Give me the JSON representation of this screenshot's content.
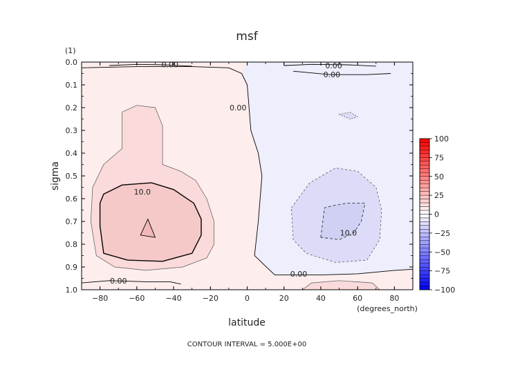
{
  "chart_data": {
    "type": "contour",
    "title": "msf",
    "xlabel": "latitude",
    "ylabel": "sigma",
    "y_unit_label": "(1)",
    "x_unit_label": "(degrees_north)",
    "footer": "CONTOUR INTERVAL = 5.000E+00",
    "xlim": [
      -90,
      90
    ],
    "ylim": [
      1.0,
      0.0
    ],
    "x_ticks": [
      -80,
      -60,
      -40,
      -20,
      0,
      20,
      40,
      60,
      80
    ],
    "x_tick_labels": [
      "−80",
      "−60",
      "−40",
      "−20",
      "0",
      "20",
      "40",
      "60",
      "80"
    ],
    "y_ticks": [
      0.0,
      0.1,
      0.2,
      0.3,
      0.4,
      0.5,
      0.6,
      0.7,
      0.8,
      0.9,
      1.0
    ],
    "y_tick_labels": [
      "0.0",
      "0.1",
      "0.2",
      "0.3",
      "0.4",
      "0.5",
      "0.6",
      "0.7",
      "0.8",
      "0.9",
      "1.0"
    ],
    "colorbar": {
      "min": -100,
      "max": 100,
      "labels": [
        "100",
        "75",
        "50",
        "25",
        "0",
        "−25",
        "−50",
        "−75",
        "−100"
      ],
      "label_values": [
        100,
        75,
        50,
        25,
        0,
        -25,
        -50,
        -75,
        -100
      ],
      "n_steps": 40,
      "colors": {
        "pos_max": "#ff0000",
        "neg_max": "#0000ff",
        "mid": "#ffffff"
      }
    },
    "fill_colors": {
      "bg_pos": "#fdeded",
      "bg_neg": "#eeeefc",
      "pos_5": "#fadada",
      "pos_10": "#f6c9c9",
      "neg_5": "#dcdcf8"
    },
    "contour_labels": [
      {
        "text": "0.00",
        "lat": -42,
        "sigma": 0.01
      },
      {
        "text": "0.00",
        "lat": 47,
        "sigma": 0.015
      },
      {
        "text": "0.00",
        "lat": 46,
        "sigma": 0.055
      },
      {
        "text": "0.00",
        "lat": -5,
        "sigma": 0.2
      },
      {
        "text": "10.0",
        "lat": -57,
        "sigma": 0.57
      },
      {
        "text": "10.0",
        "lat": 55,
        "sigma": 0.75
      },
      {
        "text": "0.00",
        "lat": 28,
        "sigma": 0.93
      },
      {
        "text": "0.00",
        "lat": -70,
        "sigma": 0.96
      }
    ],
    "contours": {
      "zero_line": [
        [
          -90,
          0.025
        ],
        [
          -60,
          0.02
        ],
        [
          -30,
          0.02
        ],
        [
          -10,
          0.025
        ],
        [
          -3,
          0.05
        ],
        [
          0,
          0.1
        ],
        [
          1,
          0.2
        ],
        [
          2,
          0.3
        ],
        [
          6,
          0.4
        ],
        [
          8,
          0.5
        ],
        [
          6,
          0.7
        ],
        [
          4,
          0.85
        ],
        [
          15,
          0.935
        ],
        [
          40,
          0.935
        ],
        [
          60,
          0.93
        ],
        [
          80,
          0.915
        ],
        [
          90,
          0.91
        ]
      ],
      "zero_top_left": [
        [
          -75,
          0.015
        ],
        [
          -60,
          0.01
        ],
        [
          -45,
          0.012
        ],
        [
          -30,
          0.018
        ]
      ],
      "zero_top_right": [
        [
          20,
          0.015
        ],
        [
          35,
          0.01
        ],
        [
          55,
          0.012
        ],
        [
          70,
          0.018
        ]
      ],
      "zero_top_right2": [
        [
          25,
          0.04
        ],
        [
          45,
          0.055
        ],
        [
          65,
          0.055
        ],
        [
          78,
          0.05
        ]
      ],
      "zero_bottom_left": [
        [
          -90,
          0.97
        ],
        [
          -75,
          0.96
        ],
        [
          -55,
          0.965
        ],
        [
          -42,
          0.965
        ],
        [
          -36,
          0.975
        ]
      ],
      "pos_5": [
        [
          -68,
          0.22
        ],
        [
          -60,
          0.19
        ],
        [
          -50,
          0.2
        ],
        [
          -46,
          0.28
        ],
        [
          -46,
          0.45
        ],
        [
          -36,
          0.48
        ],
        [
          -28,
          0.52
        ],
        [
          -22,
          0.6
        ],
        [
          -18,
          0.7
        ],
        [
          -18,
          0.8
        ],
        [
          -22,
          0.86
        ],
        [
          -35,
          0.9
        ],
        [
          -55,
          0.915
        ],
        [
          -72,
          0.9
        ],
        [
          -82,
          0.85
        ],
        [
          -85,
          0.7
        ],
        [
          -84,
          0.55
        ],
        [
          -78,
          0.45
        ],
        [
          -68,
          0.38
        ]
      ],
      "pos_10": [
        [
          -78,
          0.58
        ],
        [
          -68,
          0.54
        ],
        [
          -52,
          0.53
        ],
        [
          -40,
          0.56
        ],
        [
          -29,
          0.62
        ],
        [
          -25,
          0.69
        ],
        [
          -25,
          0.76
        ],
        [
          -30,
          0.84
        ],
        [
          -46,
          0.875
        ],
        [
          -65,
          0.87
        ],
        [
          -78,
          0.84
        ],
        [
          -80,
          0.72
        ],
        [
          -80,
          0.62
        ]
      ],
      "pos_15": [
        [
          -58,
          0.76
        ],
        [
          -54,
          0.69
        ],
        [
          -50,
          0.77
        ]
      ],
      "neg_5": [
        [
          24,
          0.64
        ],
        [
          34,
          0.53
        ],
        [
          48,
          0.465
        ],
        [
          60,
          0.48
        ],
        [
          70,
          0.55
        ],
        [
          73,
          0.65
        ],
        [
          72,
          0.78
        ],
        [
          65,
          0.87
        ],
        [
          48,
          0.88
        ],
        [
          32,
          0.84
        ],
        [
          25,
          0.78
        ]
      ],
      "neg_10": [
        [
          40,
          0.77
        ],
        [
          42,
          0.64
        ],
        [
          47,
          0.63
        ],
        [
          54,
          0.62
        ],
        [
          64,
          0.62
        ],
        [
          62,
          0.7
        ],
        [
          58,
          0.75
        ],
        [
          50,
          0.78
        ]
      ],
      "neg_upper_small": [
        [
          50,
          0.23
        ],
        [
          56,
          0.22
        ],
        [
          60,
          0.24
        ],
        [
          56,
          0.25
        ]
      ],
      "pos_bottom_right": [
        [
          30,
          1.0
        ],
        [
          35,
          0.97
        ],
        [
          50,
          0.96
        ],
        [
          68,
          0.97
        ],
        [
          72,
          1.0
        ]
      ]
    }
  }
}
